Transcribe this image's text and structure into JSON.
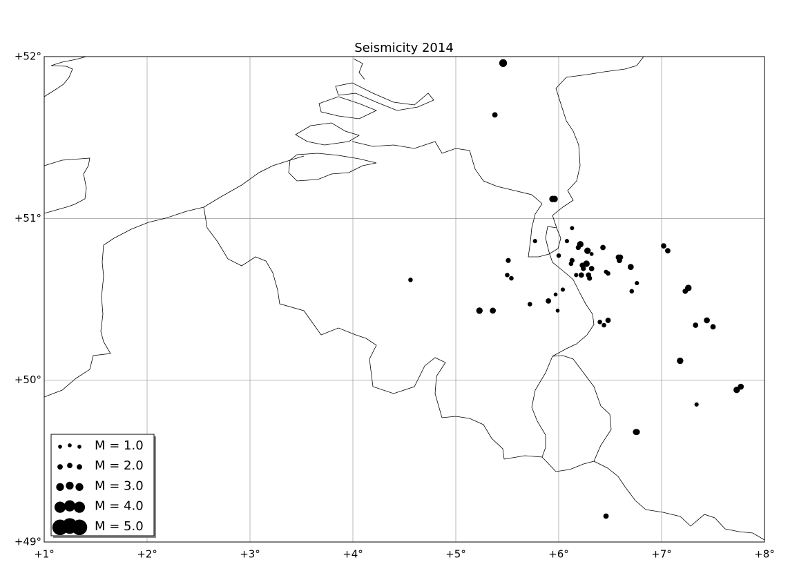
{
  "chart_data": {
    "type": "scatter",
    "title": "Seismicity 2014",
    "x": [
      5.46,
      5.38,
      5.94,
      5.96,
      6.13,
      6.08,
      5.77,
      6.21,
      6.19,
      6.43,
      6.28,
      6.32,
      6.0,
      6.58,
      6.6,
      6.59,
      5.51,
      6.13,
      6.12,
      6.27,
      6.23,
      6.7,
      6.32,
      6.24,
      6.46,
      6.48,
      6.17,
      6.22,
      6.29,
      6.3,
      5.5,
      5.54,
      4.56,
      6.76,
      6.04,
      6.71,
      5.97,
      5.9,
      5.72,
      5.23,
      5.36,
      5.99,
      6.4,
      6.44,
      6.48,
      7.02,
      7.06,
      7.26,
      7.23,
      7.33,
      7.44,
      7.5,
      7.18,
      7.77,
      7.73,
      7.34,
      6.75,
      6.76,
      6.46
    ],
    "y": [
      51.96,
      51.64,
      51.12,
      51.12,
      50.94,
      50.86,
      50.86,
      50.84,
      50.82,
      50.82,
      50.8,
      50.78,
      50.77,
      50.76,
      50.76,
      50.74,
      50.74,
      50.74,
      50.72,
      50.72,
      50.71,
      50.7,
      50.69,
      50.69,
      50.67,
      50.66,
      50.65,
      50.65,
      50.65,
      50.63,
      50.65,
      50.63,
      50.62,
      50.6,
      50.56,
      50.55,
      50.53,
      50.49,
      50.47,
      50.43,
      50.43,
      50.43,
      50.36,
      50.34,
      50.37,
      50.83,
      50.8,
      50.57,
      50.55,
      50.34,
      50.37,
      50.33,
      50.12,
      49.96,
      49.94,
      49.85,
      49.68,
      49.68,
      49.16
    ],
    "sizes": [
      3.0,
      2.0,
      2.5,
      2.5,
      1.2,
      1.3,
      1.3,
      2.5,
      1.8,
      2.0,
      2.5,
      1.0,
      1.5,
      2.0,
      2.0,
      2.0,
      1.8,
      1.8,
      1.5,
      2.5,
      2.0,
      2.3,
      2.0,
      1.8,
      1.3,
      1.5,
      1.3,
      2.0,
      2.0,
      1.8,
      1.5,
      1.5,
      1.5,
      1.3,
      1.3,
      1.5,
      1.0,
      2.0,
      1.5,
      2.5,
      2.3,
      1.0,
      1.5,
      1.5,
      2.0,
      2.0,
      2.0,
      2.5,
      2.0,
      2.0,
      2.3,
      2.0,
      2.5,
      2.3,
      2.5,
      1.3,
      2.3,
      2.3,
      2.0
    ],
    "color": "#000000",
    "xlim": [
      1,
      8
    ],
    "ylim": [
      49,
      52
    ],
    "xticks": [
      {
        "value": 1,
        "label": "+1°"
      },
      {
        "value": 2,
        "label": "+2°"
      },
      {
        "value": 3,
        "label": "+3°"
      },
      {
        "value": 4,
        "label": "+4°"
      },
      {
        "value": 5,
        "label": "+5°"
      },
      {
        "value": 6,
        "label": "+6°"
      },
      {
        "value": 7,
        "label": "+7°"
      },
      {
        "value": 8,
        "label": "+8°"
      }
    ],
    "yticks": [
      {
        "value": 49,
        "label": "+49°"
      },
      {
        "value": 50,
        "label": "+50°"
      },
      {
        "value": 51,
        "label": "+51°"
      },
      {
        "value": 52,
        "label": "+52°"
      }
    ],
    "grid": true,
    "legend_loc": "lower left",
    "size_legend": [
      {
        "value": 1,
        "label": "M = 1.0"
      },
      {
        "value": 2,
        "label": "M = 2.0"
      },
      {
        "value": 3,
        "label": "M = 3.0"
      },
      {
        "value": 4,
        "label": "M = 4.0"
      },
      {
        "value": 5,
        "label": "M = 5.0"
      }
    ]
  }
}
